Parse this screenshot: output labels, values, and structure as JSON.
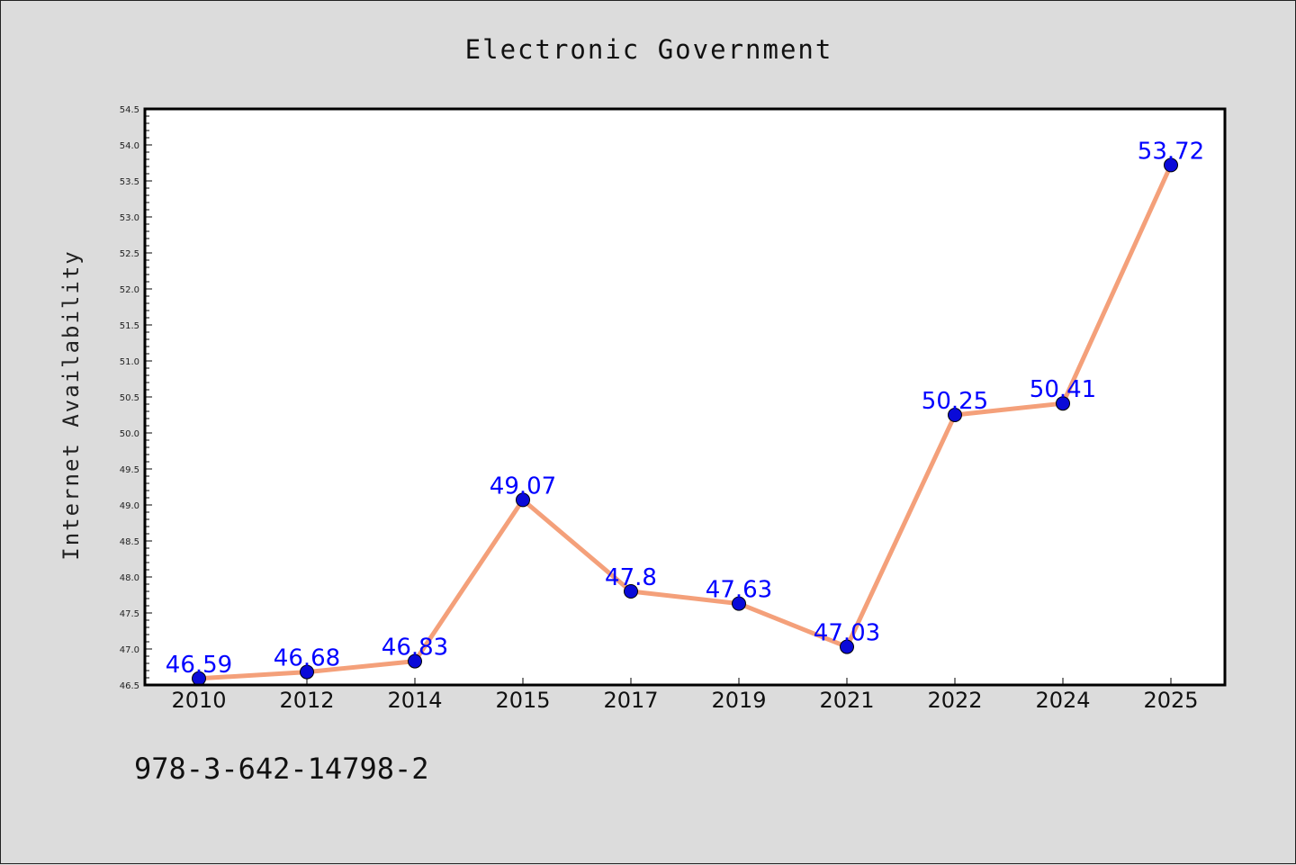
{
  "chart_data": {
    "type": "line",
    "title": "Electronic Government",
    "xlabel": "",
    "ylabel": "Internet Availability",
    "categories": [
      "2010",
      "2012",
      "2014",
      "2015",
      "2017",
      "2019",
      "2021",
      "2022",
      "2024",
      "2025"
    ],
    "series": [
      {
        "values": [
          46.59,
          46.68,
          46.83,
          49.07,
          47.8,
          47.63,
          47.03,
          50.25,
          50.41,
          53.72
        ],
        "data_labels": [
          "46.59",
          "46.68",
          "46.83",
          "49.07",
          "47.8",
          "47.63",
          "47.03",
          "50.25",
          "50.41",
          "53.72"
        ],
        "line_color": "#f4a07a",
        "marker_color": "#0a0ad8",
        "label_color": "#0000ff"
      }
    ],
    "ylim": [
      46.5,
      54.5
    ],
    "ytick_step": 0.5,
    "grid": false,
    "legend": "none"
  },
  "footer": {
    "isbn": "978-3-642-14798-2"
  },
  "colors": {
    "background": "#dcdcdc",
    "plot_background": "#ffffff",
    "axis": "#000000"
  }
}
